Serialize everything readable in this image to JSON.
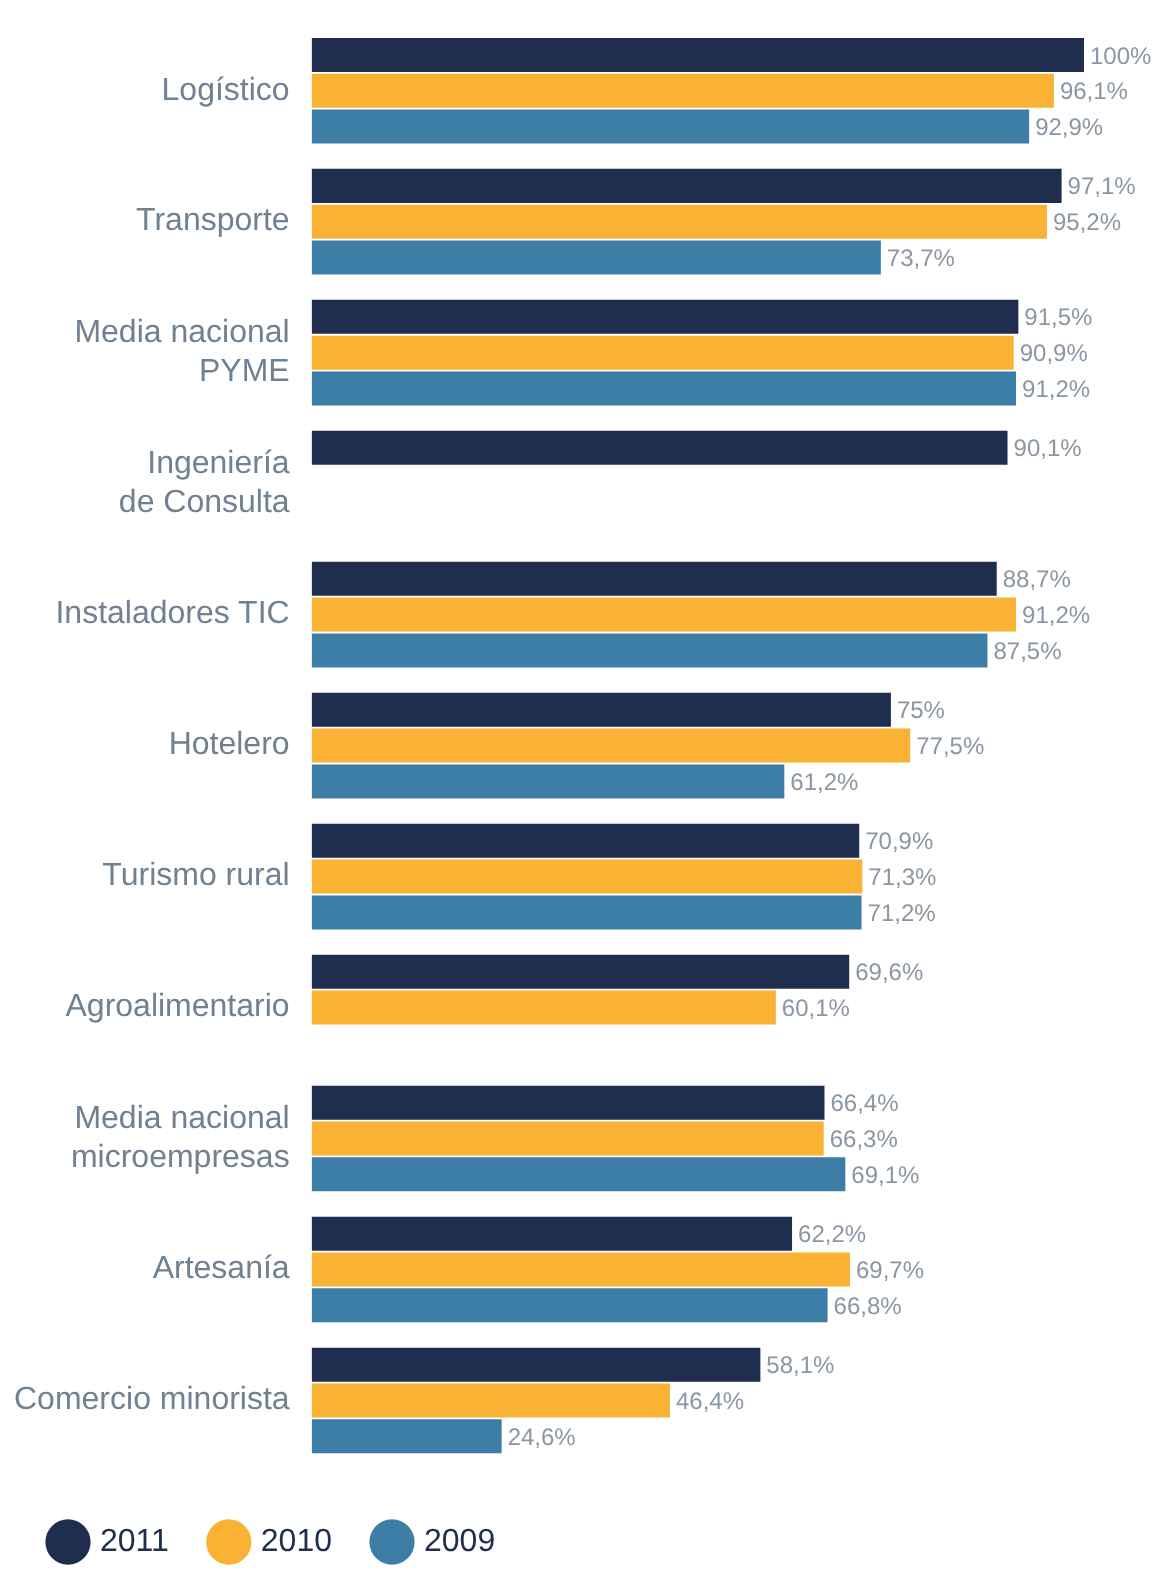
{
  "chart_data": {
    "type": "bar",
    "orientation": "horizontal",
    "categories": [
      "Logístico",
      "Transporte",
      "Media nacional\nPYME",
      "Ingeniería\nde Consulta",
      "Instaladores TIC",
      "Hotelero",
      "Turismo rural",
      "Agroalimentario",
      "Media nacional\nmicroempresas",
      "Artesanía",
      "Comercio minorista"
    ],
    "series": [
      {
        "name": "2011",
        "color": "#1f2d4f",
        "values": [
          100,
          97.1,
          91.5,
          90.1,
          88.7,
          75,
          70.9,
          69.6,
          66.4,
          62.2,
          58.1
        ],
        "value_labels": [
          "100%",
          "97,1%",
          "91,5%",
          "90,1%",
          "88,7%",
          "75%",
          "70,9%",
          "69,6%",
          "66,4%",
          "62,2%",
          "58,1%"
        ]
      },
      {
        "name": "2010",
        "color": "#f9b233",
        "values": [
          96.1,
          95.2,
          90.9,
          null,
          91.2,
          77.5,
          71.3,
          60.1,
          66.3,
          69.7,
          46.4
        ],
        "value_labels": [
          "96,1%",
          "95,2%",
          "90,9%",
          null,
          "91,2%",
          "77,5%",
          "71,3%",
          "60,1%",
          "66,3%",
          "69,7%",
          "46,4%"
        ]
      },
      {
        "name": "2009",
        "color": "#3d7ea6",
        "values": [
          92.9,
          73.7,
          91.2,
          null,
          87.5,
          61.2,
          71.2,
          null,
          69.1,
          66.8,
          24.6
        ],
        "value_labels": [
          "92,9%",
          "73,7%",
          "91,2%",
          null,
          "87,5%",
          "61,2%",
          "71,2%",
          null,
          "69,1%",
          "66,8%",
          "24,6%"
        ]
      }
    ],
    "tick_labels": "y",
    "grid": false,
    "legend": "bottom left"
  }
}
